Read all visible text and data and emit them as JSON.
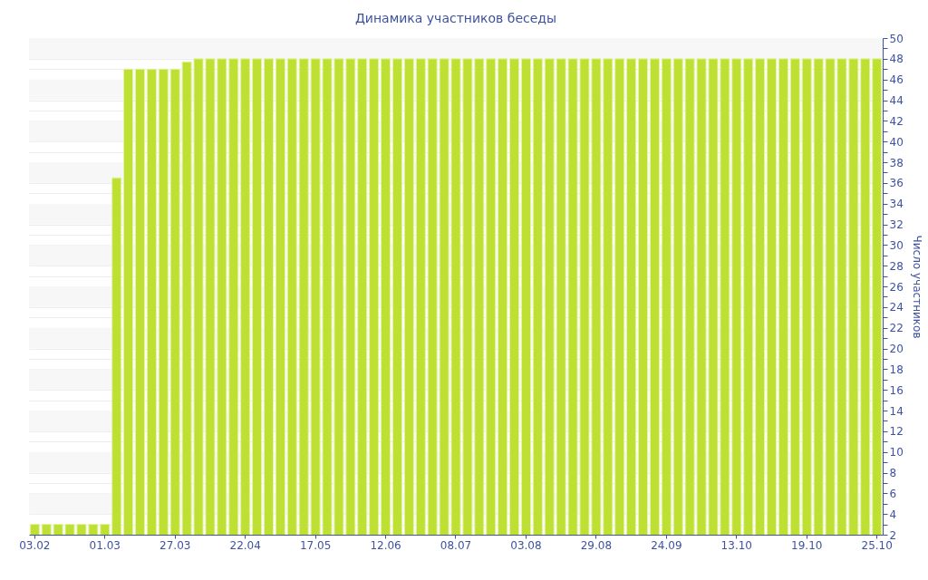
{
  "chart_data": {
    "type": "bar",
    "title": "Динамика участников беседы",
    "y2label": "Число участников",
    "categories": [
      "03.02",
      null,
      null,
      null,
      null,
      null,
      "01.03",
      null,
      null,
      null,
      null,
      null,
      "27.03",
      null,
      null,
      null,
      null,
      null,
      "22.04",
      null,
      null,
      null,
      null,
      null,
      "17.05",
      null,
      null,
      null,
      null,
      null,
      "12.06",
      null,
      null,
      null,
      null,
      null,
      "08.07",
      null,
      null,
      null,
      null,
      null,
      "03.08",
      null,
      null,
      null,
      null,
      null,
      "29.08",
      null,
      null,
      null,
      null,
      null,
      "24.09",
      null,
      null,
      null,
      null,
      null,
      "13.10",
      null,
      null,
      null,
      null,
      null,
      "19.10",
      null,
      null,
      null,
      null,
      null,
      "25.10"
    ],
    "series": [
      {
        "color": "#bde033",
        "axis": "y2",
        "values": [
          3,
          3,
          3,
          3,
          3,
          3,
          3,
          36.5,
          47,
          47,
          47,
          47,
          47,
          47.7,
          48,
          48,
          48,
          48,
          48,
          48,
          48,
          48,
          48,
          48,
          48,
          48,
          48,
          48,
          48,
          48,
          48,
          48,
          48,
          48,
          48,
          48,
          48,
          48,
          48,
          48,
          48,
          48,
          48,
          48,
          48,
          48,
          48,
          48,
          48,
          48,
          48,
          48,
          48,
          48,
          48,
          48,
          48,
          48,
          48,
          48,
          48,
          48,
          48,
          48,
          48,
          48,
          48,
          48,
          48,
          48,
          48,
          48,
          48
        ]
      }
    ],
    "y2lim": [
      2,
      50
    ],
    "y2ticks": [
      2,
      {
        "value": 3,
        "label": null
      },
      4,
      {
        "value": 5,
        "label": null
      },
      6,
      {
        "value": 7,
        "label": null
      },
      8,
      {
        "value": 9,
        "label": null
      },
      10,
      {
        "value": 11,
        "label": null
      },
      12,
      {
        "value": 13,
        "label": null
      },
      14,
      {
        "value": 15,
        "label": null
      },
      16,
      {
        "value": 17,
        "label": null
      },
      18,
      {
        "value": 19,
        "label": null
      },
      20,
      {
        "value": 21,
        "label": null
      },
      22,
      {
        "value": 23,
        "label": null
      },
      24,
      {
        "value": 25,
        "label": null
      },
      26,
      {
        "value": 27,
        "label": null
      },
      28,
      {
        "value": 29,
        "label": null
      },
      30,
      {
        "value": 31,
        "label": null
      },
      32,
      {
        "value": 33,
        "label": null
      },
      34,
      {
        "value": 35,
        "label": null
      },
      36,
      {
        "value": 37,
        "label": null
      },
      38,
      {
        "value": 39,
        "label": null
      },
      40,
      {
        "value": 41,
        "label": null
      },
      42,
      {
        "value": 43,
        "label": null
      },
      44,
      {
        "value": 45,
        "label": null
      },
      46,
      {
        "value": 47,
        "label": null
      },
      48,
      {
        "value": 49,
        "label": null
      },
      50
    ],
    "grid": "y"
  }
}
